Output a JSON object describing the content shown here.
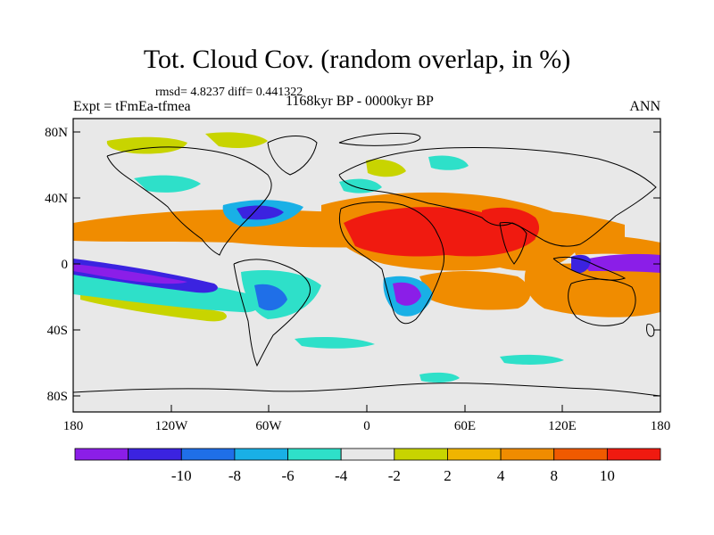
{
  "header": {
    "title": "Tot. Cloud Cov. (random overlap, in %)",
    "stats": "rmsd= 4.8237 diff= 0.441322",
    "experiment": "Expt = tFmEa-tfmea",
    "period": "1168kyr BP - 0000kyr BP",
    "season": "ANN"
  },
  "map": {
    "lat_ticks": [
      "80N",
      "40N",
      "0",
      "40S",
      "80S"
    ],
    "lon_ticks": [
      "180",
      "120W",
      "60W",
      "0",
      "60E",
      "120E",
      "180"
    ]
  },
  "colorbar": {
    "colors": [
      "#8b1ee8",
      "#3b23e0",
      "#1f6fe8",
      "#19b0e6",
      "#2ee0c9",
      "#e8e8e8",
      "#c8d400",
      "#f0b400",
      "#f08c00",
      "#f05a00",
      "#f01a10"
    ],
    "labels": [
      "-10",
      "-8",
      "-6",
      "-4",
      "-2",
      "2",
      "4",
      "8",
      "10"
    ]
  },
  "colors": {
    "background": "#e8e8e8",
    "coastline": "#000000"
  }
}
